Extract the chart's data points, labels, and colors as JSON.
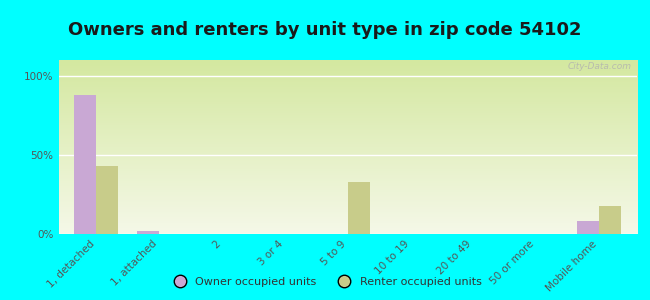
{
  "title": "Owners and renters by unit type in zip code 54102",
  "categories": [
    "1, detached",
    "1, attached",
    "2",
    "3 or 4",
    "5 to 9",
    "10 to 19",
    "20 to 49",
    "50 or more",
    "Mobile home"
  ],
  "owner_values": [
    88,
    2,
    0,
    0,
    0,
    0,
    0,
    0,
    8
  ],
  "renter_values": [
    43,
    0,
    0,
    0,
    33,
    0,
    0,
    0,
    18
  ],
  "owner_color": "#c9a8d4",
  "renter_color": "#c8cc8a",
  "background_color": "#00ffff",
  "ylabel_ticks": [
    "0%",
    "50%",
    "100%"
  ],
  "ytick_vals": [
    0,
    50,
    100
  ],
  "ylim": [
    0,
    110
  ],
  "bar_width": 0.35,
  "watermark": "City-Data.com",
  "legend_owner": "Owner occupied units",
  "legend_renter": "Renter occupied units",
  "title_fontsize": 13,
  "tick_fontsize": 7.5
}
